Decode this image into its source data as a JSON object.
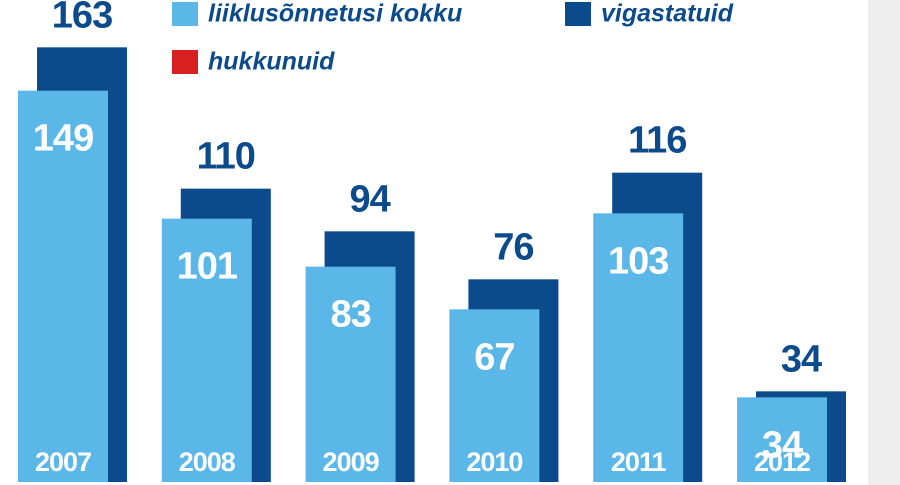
{
  "chart_data": {
    "type": "bar",
    "categories": [
      "2007",
      "2008",
      "2009",
      "2010",
      "2011",
      "2012"
    ],
    "series": [
      {
        "name": "liiklusõnnetusi kokku",
        "color": "#5bb7e8",
        "values": [
          149,
          101,
          83,
          67,
          103,
          34
        ]
      },
      {
        "name": "vigastatuid",
        "color": "#0b4a8b",
        "values": [
          163,
          110,
          94,
          76,
          116,
          34
        ]
      },
      {
        "name": "hukkunuid",
        "color": "#d7201f",
        "values": [
          null,
          null,
          null,
          null,
          null,
          null
        ]
      }
    ],
    "ylim": [
      0,
      180
    ]
  }
}
